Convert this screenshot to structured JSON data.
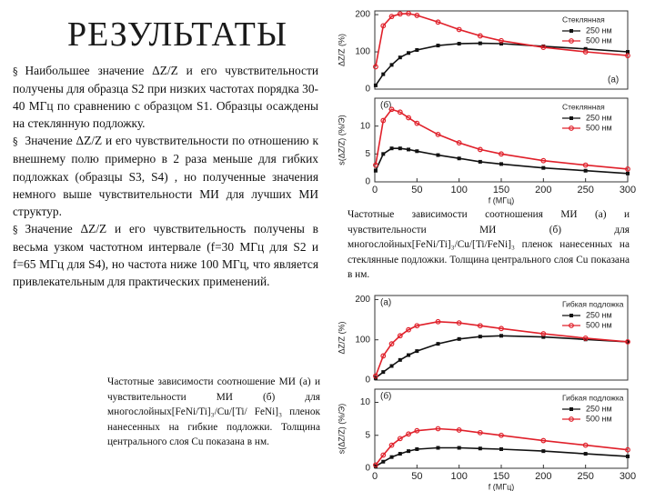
{
  "title": "РЕЗУЛЬТАТЫ",
  "bullet_marker": "§",
  "bullets": [
    "Наибольшее значение ΔZ/Z и его чувствительности получены для образца S2 при низких частотах порядка 30-40 МГц по сравнению с образцом S1. Образцы осаждены на стеклянную подложку.",
    "Значение ΔZ/Z и его чувствительности по отношению к внешнему полю примерно в 2 раза меньше для гибких подложках (образцы S3, S4) , но полученные значения немного выше чувствительности МИ для лучших МИ структур.",
    "Значение ΔZ/Z и его чувствительность получены в весьма узком частотном интервале (f=30 МГц для S2 и f=65 МГц для S4), но частота ниже 100 МГц, что является привлекательным для практических применений."
  ],
  "captions": {
    "right": "Частотные зависимости соотношения МИ (а) и чувствительности МИ (б) для многослойных[FeNi/Ti]₃/Cu/[Ti/FeNi]₃ пленок нанесенных на стеклянные подложки. Толщина центрального слоя Cu показана в нм.",
    "left": "Частотные зависимости соотношение МИ (а) и чувствительности МИ (б) для многослойных[FeNi/Ti]₃/Cu/[Ti/ FeNi]₃ пленок нанесенных на гибкие подложки. Толщина центрального слоя Cu показана в нм."
  },
  "chart_data": [
    {
      "type": "line",
      "ylabel": "ΔZ/Z (%)",
      "legend_title": "Стеклянная",
      "annotation": "(а)",
      "x": [
        1,
        10,
        20,
        30,
        40,
        50,
        75,
        100,
        125,
        150,
        200,
        250,
        300
      ],
      "xlim": [
        0,
        300
      ],
      "ylim": [
        0,
        210
      ],
      "yticks": [
        0,
        100,
        200
      ],
      "series": [
        {
          "name": "250 нм",
          "color": "#111111",
          "values": [
            10,
            40,
            65,
            85,
            97,
            105,
            117,
            122,
            123,
            122,
            115,
            108,
            100
          ]
        },
        {
          "name": "500 нм",
          "color": "#e0202a",
          "values": [
            60,
            170,
            195,
            202,
            203,
            198,
            180,
            160,
            143,
            130,
            112,
            100,
            90
          ]
        }
      ]
    },
    {
      "type": "line",
      "ylabel": "s(ΔZ/Z) (%/Э)",
      "xlabel": "f (МГц)",
      "legend_title": "Стеклянная",
      "annotation": "(б)",
      "x": [
        1,
        10,
        20,
        30,
        40,
        50,
        75,
        100,
        125,
        150,
        200,
        250,
        300
      ],
      "xlim": [
        0,
        300
      ],
      "xticks": [
        0,
        50,
        100,
        150,
        200,
        250,
        300
      ],
      "ylim": [
        0,
        15
      ],
      "yticks": [
        0,
        5,
        10
      ],
      "series": [
        {
          "name": "250 нм",
          "color": "#111111",
          "values": [
            2,
            5,
            6,
            6,
            5.8,
            5.5,
            4.8,
            4.2,
            3.6,
            3.2,
            2.5,
            2,
            1.5
          ]
        },
        {
          "name": "500 нм",
          "color": "#e0202a",
          "values": [
            3,
            11,
            13,
            12.5,
            11.5,
            10.5,
            8.5,
            7,
            5.8,
            5,
            3.8,
            3,
            2.3
          ]
        }
      ]
    },
    {
      "type": "line",
      "ylabel": "ΔZ/Z (%)",
      "legend_title": "Гибкая подложка",
      "annotation": "(а)",
      "x": [
        1,
        10,
        20,
        30,
        40,
        50,
        75,
        100,
        125,
        150,
        200,
        250,
        300
      ],
      "xlim": [
        0,
        300
      ],
      "ylim": [
        0,
        210
      ],
      "yticks": [
        0,
        100,
        200
      ],
      "series": [
        {
          "name": "250 нм",
          "color": "#111111",
          "values": [
            5,
            20,
            35,
            50,
            62,
            72,
            90,
            102,
            108,
            110,
            107,
            101,
            95
          ]
        },
        {
          "name": "500 нм",
          "color": "#e0202a",
          "values": [
            10,
            60,
            90,
            110,
            125,
            135,
            145,
            142,
            135,
            128,
            115,
            104,
            95
          ]
        }
      ]
    },
    {
      "type": "line",
      "ylabel": "s(ΔZ/Z) (%/Э)",
      "xlabel": "f (МГц)",
      "legend_title": "Гибкая подложка",
      "annotation": "(б)",
      "x": [
        1,
        10,
        20,
        30,
        40,
        50,
        75,
        100,
        125,
        150,
        200,
        250,
        300
      ],
      "xlim": [
        0,
        300
      ],
      "xticks": [
        0,
        50,
        100,
        150,
        200,
        250,
        300
      ],
      "ylim": [
        0,
        12
      ],
      "yticks": [
        0,
        5,
        10
      ],
      "series": [
        {
          "name": "250 нм",
          "color": "#111111",
          "values": [
            0.3,
            1,
            1.7,
            2.2,
            2.6,
            2.9,
            3.1,
            3.1,
            3,
            2.9,
            2.6,
            2.2,
            1.8
          ]
        },
        {
          "name": "500 нм",
          "color": "#e0202a",
          "values": [
            0.5,
            2,
            3.5,
            4.5,
            5.2,
            5.7,
            6,
            5.8,
            5.4,
            5,
            4.2,
            3.5,
            2.8
          ]
        }
      ]
    }
  ]
}
